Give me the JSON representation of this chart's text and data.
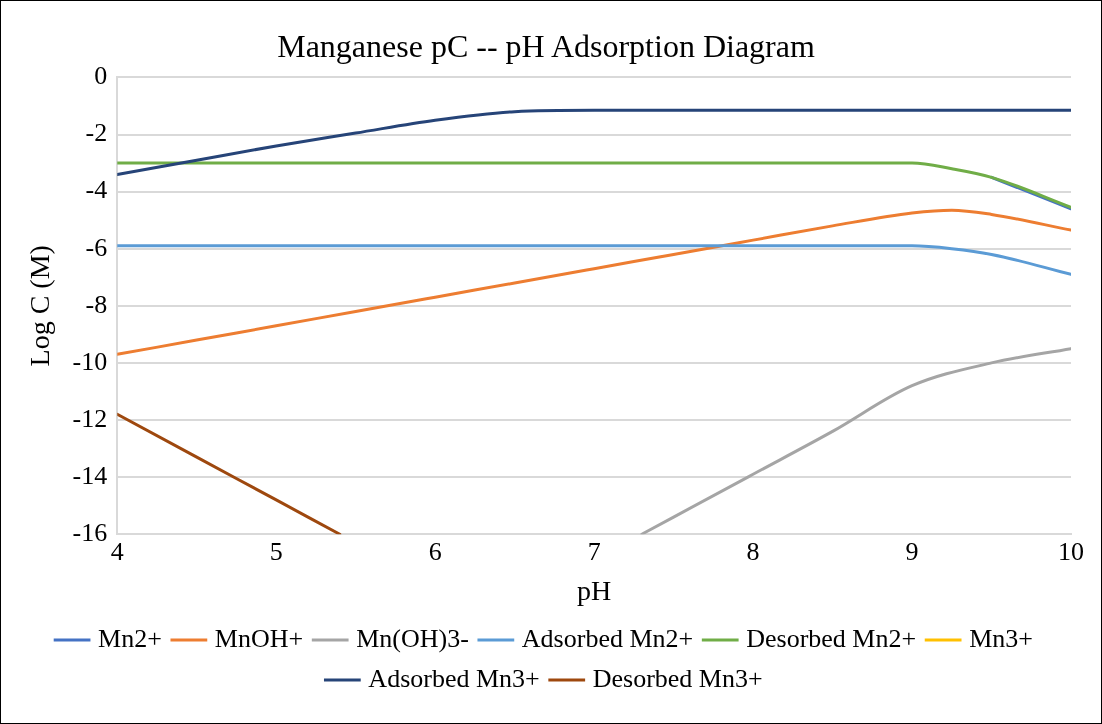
{
  "chart_data": {
    "type": "line",
    "title": "Manganese pC -- pH Adsorption Diagram",
    "xlabel": "pH",
    "ylabel": "Log C (M)",
    "x": [
      4,
      4.5,
      5,
      5.5,
      6,
      6.5,
      7,
      7.5,
      8,
      8.5,
      9,
      9.25,
      9.5,
      10
    ],
    "series": [
      {
        "name": "Mn2+",
        "color": "#4472c4",
        "values": [
          null,
          null,
          null,
          null,
          null,
          null,
          null,
          null,
          null,
          null,
          null,
          null,
          -3.5,
          -4.6
        ]
      },
      {
        "name": "MnOH+",
        "color": "#ed7d31",
        "values": [
          -9.7,
          -9.2,
          -8.7,
          -8.2,
          -7.7,
          -7.2,
          -6.7,
          -6.2,
          -5.7,
          -5.2,
          -4.75,
          -4.65,
          -4.8,
          -5.35
        ]
      },
      {
        "name": "Mn(OH)3-",
        "color": "#a5a5a5",
        "x": [
          7.3,
          7.5,
          8,
          8.5,
          9,
          9.5,
          10
        ],
        "values": [
          -16,
          -15.4,
          -13.9,
          -12.4,
          -10.8,
          -10,
          -9.5
        ]
      },
      {
        "name": "Adsorbed Mn2+",
        "color": "#5b9bd5",
        "values": [
          -5.9,
          -5.9,
          -5.9,
          -5.9,
          -5.9,
          -5.9,
          -5.9,
          -5.9,
          -5.9,
          -5.9,
          -5.9,
          -6,
          -6.2,
          -6.9
        ]
      },
      {
        "name": "Desorbed Mn2+",
        "color": "#70ad47",
        "values": [
          -3,
          -3,
          -3,
          -3,
          -3,
          -3,
          -3,
          -3,
          -3,
          -3,
          -3,
          -3.2,
          -3.5,
          -4.55
        ]
      },
      {
        "name": "Mn3+",
        "color": "#ffc000",
        "values": [
          null,
          null,
          null,
          null,
          null,
          null,
          null,
          null,
          null,
          null,
          null,
          null,
          null,
          null
        ]
      },
      {
        "name": "Adsorbed Mn3+",
        "color": "#264478",
        "values": [
          -3.4,
          -2.9,
          -2.4,
          -1.95,
          -1.5,
          -1.2,
          -1.15,
          -1.15,
          -1.15,
          -1.15,
          -1.15,
          -1.15,
          -1.15,
          -1.15
        ]
      },
      {
        "name": "Desorbed Mn3+",
        "color": "#9e480e",
        "x": [
          4,
          4.5,
          5,
          5.4
        ],
        "values": [
          -11.8,
          -13.3,
          -14.8,
          -16
        ]
      }
    ],
    "xlim": [
      4,
      10
    ],
    "xticks": [
      4,
      5,
      6,
      7,
      8,
      9,
      10
    ],
    "ylim": [
      -16,
      0
    ],
    "yticks": [
      0,
      -2,
      -4,
      -6,
      -8,
      -10,
      -12,
      -14,
      -16
    ],
    "grid": "y",
    "legend": "bottom",
    "marker": "none",
    "line_style": "solid"
  }
}
